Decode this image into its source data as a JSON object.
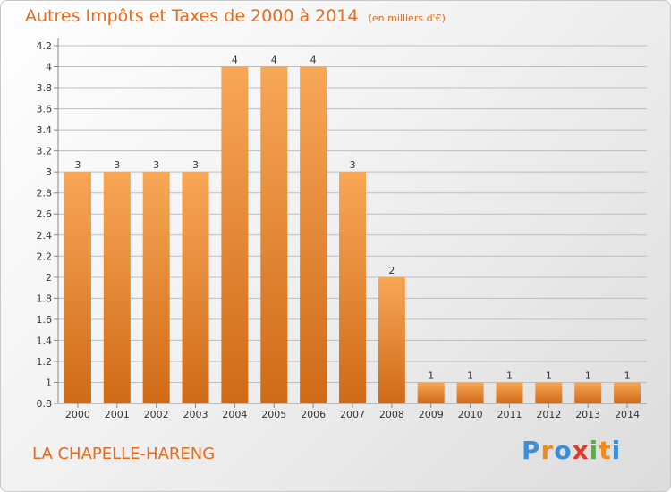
{
  "title": "Autres Impôts et Taxes de 2000 à 2014",
  "unit_label": "(en milliers d'€)",
  "commune": "LA CHAPELLE-HARENG",
  "logo": {
    "text": "Proxiti",
    "letters": [
      {
        "char": "P",
        "color": "#3a8fd6"
      },
      {
        "char": "r",
        "color": "#f08a1c"
      },
      {
        "char": "o",
        "color": "#3a8fd6"
      },
      {
        "char": "x",
        "color": "#e23a2a"
      },
      {
        "char": "i",
        "color": "#57b23b"
      },
      {
        "char": "t",
        "color": "#f08a1c"
      },
      {
        "char": "i",
        "color": "#3a8fd6"
      }
    ]
  },
  "colors": {
    "title": "#e86a1a",
    "bar_light": "#f7a757",
    "bar_dark": "#d06a16",
    "axis": "#888888",
    "grid": "#bdbdbd"
  },
  "chart_data": {
    "type": "bar",
    "categories": [
      "2000",
      "2001",
      "2002",
      "2003",
      "2004",
      "2005",
      "2006",
      "2007",
      "2008",
      "2009",
      "2010",
      "2011",
      "2012",
      "2013",
      "2014"
    ],
    "values": [
      3,
      3,
      3,
      3,
      4,
      4,
      4,
      3,
      2,
      1,
      1,
      1,
      1,
      1,
      1
    ],
    "data_labels": [
      "3",
      "3",
      "3",
      "3",
      "4",
      "4",
      "4",
      "3",
      "2",
      "1",
      "1",
      "1",
      "1",
      "1",
      "1"
    ],
    "ylim": [
      0.8,
      4.2
    ],
    "yticks": [
      0.8,
      1,
      1.2,
      1.4,
      1.6,
      1.8,
      2,
      2.2,
      2.4,
      2.6,
      2.8,
      3,
      3.2,
      3.4,
      3.6,
      3.8,
      4,
      4.2
    ],
    "ytick_labels": [
      "0.8",
      "1",
      "1.2",
      "1.4",
      "1.6",
      "1.8",
      "2",
      "2.2",
      "2.4",
      "2.6",
      "2.8",
      "3",
      "3.2",
      "3.4",
      "3.6",
      "3.8",
      "4",
      "4.2"
    ],
    "grid": true,
    "xlabel": "",
    "ylabel": ""
  }
}
